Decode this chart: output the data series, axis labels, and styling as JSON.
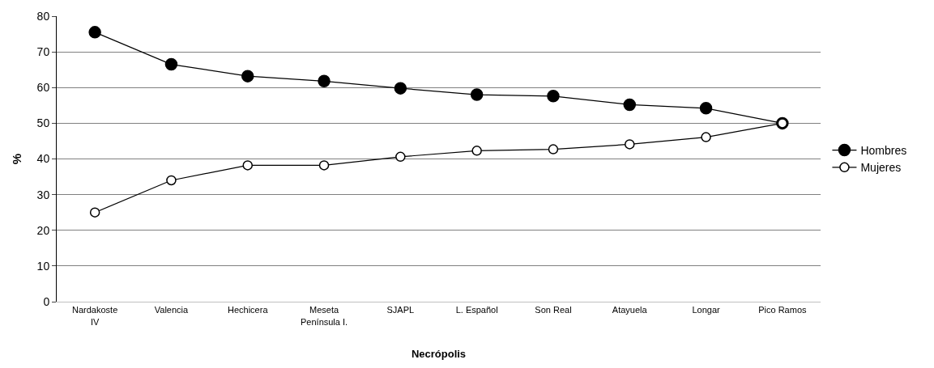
{
  "chart_data": {
    "type": "line",
    "xlabel": "Necrópolis",
    "ylabel": "%",
    "categories": [
      "Nardakoste IV",
      "Valencia",
      "Hechicera",
      "Meseta Península I.",
      "SJAPL",
      "L. Español",
      "Son Real",
      "Atayuela",
      "Longar",
      "Pico Ramos"
    ],
    "series": [
      {
        "name": "Hombres",
        "color": "#000000",
        "values": [
          75.5,
          66.5,
          63.2,
          61.8,
          59.8,
          58.0,
          57.6,
          55.2,
          54.2,
          50.0
        ]
      },
      {
        "name": "Mujeres",
        "color": "#ffffff",
        "values": [
          25.0,
          34.0,
          38.2,
          38.2,
          40.6,
          42.3,
          42.7,
          44.1,
          46.1,
          50.0
        ]
      }
    ],
    "ylim": [
      0,
      80
    ],
    "yticks": [
      0,
      10,
      20,
      30,
      40,
      50,
      60,
      70,
      80
    ],
    "grid": "y",
    "legend": "right",
    "marker": "circle",
    "line_style": "solid"
  }
}
